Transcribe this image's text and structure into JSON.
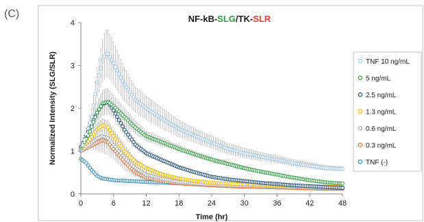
{
  "panel_label": "(C)",
  "chart_data": {
    "type": "scatter",
    "title_parts": [
      {
        "text": "NF-kB-",
        "color": "#1a1a1a"
      },
      {
        "text": "SLG",
        "color": "#2e9e3e"
      },
      {
        "text": "/TK-",
        "color": "#1a1a1a"
      },
      {
        "text": "SLR",
        "color": "#e03c31"
      }
    ],
    "xlabel": "Time (hr)",
    "ylabel": "Normalized Intensity (SLG/SLR)",
    "xlim": [
      0,
      48
    ],
    "ylim": [
      0,
      4
    ],
    "xticks": [
      0,
      6,
      12,
      18,
      24,
      30,
      36,
      42,
      48
    ],
    "yticks": [
      0,
      1,
      2,
      3,
      4
    ],
    "grid": false,
    "legend_position": "right",
    "marker": "open-circle",
    "error_bars": true,
    "series": [
      {
        "name": "TNF 10 ng/mL",
        "color": "#9dc3e6",
        "errcolor": "#b4b4b4",
        "points": [
          [
            0,
            1.0
          ],
          [
            2,
            1.8
          ],
          [
            3,
            2.6
          ],
          [
            4,
            3.1
          ],
          [
            4.5,
            3.27
          ],
          [
            5,
            3.27
          ],
          [
            6,
            3.05
          ],
          [
            8,
            2.55
          ],
          [
            10,
            2.2
          ],
          [
            12,
            2.0
          ],
          [
            15,
            1.75
          ],
          [
            18,
            1.52
          ],
          [
            21,
            1.35
          ],
          [
            24,
            1.2
          ],
          [
            27,
            1.05
          ],
          [
            30,
            0.95
          ],
          [
            33,
            0.87
          ],
          [
            36,
            0.8
          ],
          [
            39,
            0.72
          ],
          [
            42,
            0.66
          ],
          [
            45,
            0.6
          ],
          [
            48,
            0.58
          ]
        ],
        "err": [
          [
            0,
            0.05
          ],
          [
            2,
            0.2
          ],
          [
            3,
            0.35
          ],
          [
            4,
            0.5
          ],
          [
            4.5,
            0.55
          ],
          [
            5,
            0.55
          ],
          [
            6,
            0.5
          ],
          [
            8,
            0.4
          ],
          [
            10,
            0.3
          ],
          [
            12,
            0.28
          ],
          [
            15,
            0.25
          ],
          [
            18,
            0.2
          ],
          [
            21,
            0.17
          ],
          [
            24,
            0.15
          ],
          [
            27,
            0.13
          ],
          [
            30,
            0.12
          ],
          [
            33,
            0.1
          ],
          [
            36,
            0.09
          ],
          [
            39,
            0.08
          ],
          [
            42,
            0.07
          ],
          [
            45,
            0.06
          ],
          [
            48,
            0.05
          ]
        ]
      },
      {
        "name": "5 ng/mL",
        "color": "#2e9e3e",
        "errcolor": "#b4b4b4",
        "points": [
          [
            0,
            1.05
          ],
          [
            1.5,
            1.4
          ],
          [
            3,
            1.9
          ],
          [
            4,
            2.12
          ],
          [
            5,
            2.15
          ],
          [
            6,
            2.05
          ],
          [
            8,
            1.8
          ],
          [
            10,
            1.55
          ],
          [
            12,
            1.35
          ],
          [
            15,
            1.2
          ],
          [
            18,
            1.05
          ],
          [
            21,
            0.92
          ],
          [
            24,
            0.8
          ],
          [
            27,
            0.7
          ],
          [
            30,
            0.6
          ],
          [
            33,
            0.52
          ],
          [
            36,
            0.45
          ],
          [
            39,
            0.38
          ],
          [
            42,
            0.32
          ],
          [
            45,
            0.27
          ],
          [
            48,
            0.24
          ]
        ],
        "err": [
          [
            0,
            0.05
          ],
          [
            1.5,
            0.1
          ],
          [
            3,
            0.25
          ],
          [
            4,
            0.3
          ],
          [
            5,
            0.3
          ],
          [
            6,
            0.25
          ],
          [
            8,
            0.2
          ],
          [
            10,
            0.15
          ],
          [
            12,
            0.12
          ],
          [
            15,
            0.1
          ],
          [
            18,
            0.08
          ],
          [
            21,
            0.07
          ],
          [
            24,
            0.06
          ],
          [
            27,
            0.05
          ],
          [
            30,
            0.05
          ],
          [
            33,
            0.04
          ],
          [
            36,
            0.04
          ],
          [
            39,
            0.03
          ],
          [
            42,
            0.03
          ],
          [
            45,
            0.03
          ],
          [
            48,
            0.02
          ]
        ]
      },
      {
        "name": "2.5 ng/mL",
        "color": "#1f4e79",
        "errcolor": "#b4b4b4",
        "points": [
          [
            0,
            1.1
          ],
          [
            1.5,
            1.5
          ],
          [
            3,
            1.9
          ],
          [
            4,
            2.1
          ],
          [
            5,
            2.15
          ],
          [
            6,
            1.95
          ],
          [
            8,
            1.5
          ],
          [
            10,
            1.15
          ],
          [
            12,
            0.95
          ],
          [
            15,
            0.78
          ],
          [
            18,
            0.62
          ],
          [
            21,
            0.5
          ],
          [
            24,
            0.4
          ],
          [
            27,
            0.34
          ],
          [
            30,
            0.3
          ],
          [
            33,
            0.26
          ],
          [
            36,
            0.23
          ],
          [
            39,
            0.2
          ],
          [
            42,
            0.18
          ],
          [
            45,
            0.16
          ],
          [
            48,
            0.14
          ]
        ],
        "err": [
          [
            0,
            0.05
          ],
          [
            1.5,
            0.1
          ],
          [
            3,
            0.2
          ],
          [
            4,
            0.25
          ],
          [
            5,
            0.25
          ],
          [
            6,
            0.2
          ],
          [
            8,
            0.15
          ],
          [
            10,
            0.1
          ],
          [
            12,
            0.08
          ],
          [
            15,
            0.06
          ],
          [
            18,
            0.05
          ],
          [
            21,
            0.04
          ],
          [
            24,
            0.04
          ],
          [
            27,
            0.03
          ],
          [
            30,
            0.03
          ],
          [
            33,
            0.03
          ],
          [
            36,
            0.02
          ],
          [
            39,
            0.02
          ],
          [
            42,
            0.02
          ],
          [
            45,
            0.02
          ],
          [
            48,
            0.02
          ]
        ]
      },
      {
        "name": "1.3 ng/mL",
        "color": "#f2b705",
        "errcolor": "#b4b4b4",
        "points": [
          [
            0,
            1.05
          ],
          [
            1.5,
            1.25
          ],
          [
            3,
            1.5
          ],
          [
            4,
            1.6
          ],
          [
            5,
            1.55
          ],
          [
            6,
            1.35
          ],
          [
            8,
            1.0
          ],
          [
            10,
            0.75
          ],
          [
            12,
            0.6
          ],
          [
            15,
            0.45
          ],
          [
            18,
            0.36
          ],
          [
            21,
            0.3
          ],
          [
            24,
            0.26
          ],
          [
            27,
            0.24
          ],
          [
            30,
            0.22
          ],
          [
            33,
            0.21
          ],
          [
            36,
            0.2
          ],
          [
            39,
            0.19
          ],
          [
            42,
            0.18
          ],
          [
            45,
            0.17
          ],
          [
            48,
            0.16
          ]
        ],
        "err": [
          [
            0,
            0.05
          ],
          [
            1.5,
            0.08
          ],
          [
            3,
            0.12
          ],
          [
            4,
            0.15
          ],
          [
            5,
            0.15
          ],
          [
            6,
            0.12
          ],
          [
            8,
            0.1
          ],
          [
            10,
            0.07
          ],
          [
            12,
            0.05
          ],
          [
            15,
            0.04
          ],
          [
            18,
            0.03
          ],
          [
            21,
            0.03
          ],
          [
            24,
            0.02
          ],
          [
            27,
            0.02
          ],
          [
            30,
            0.02
          ],
          [
            33,
            0.02
          ],
          [
            36,
            0.02
          ],
          [
            39,
            0.02
          ],
          [
            42,
            0.02
          ],
          [
            45,
            0.02
          ],
          [
            48,
            0.02
          ]
        ]
      },
      {
        "name": "0.6 ng/mL",
        "color": "#a6a6a6",
        "errcolor": "#b4b4b4",
        "points": [
          [
            0,
            1.0
          ],
          [
            1.5,
            1.15
          ],
          [
            3,
            1.3
          ],
          [
            4,
            1.35
          ],
          [
            5,
            1.3
          ],
          [
            6,
            1.15
          ],
          [
            8,
            0.85
          ],
          [
            10,
            0.6
          ],
          [
            12,
            0.45
          ],
          [
            15,
            0.35
          ],
          [
            18,
            0.28
          ],
          [
            21,
            0.24
          ],
          [
            24,
            0.22
          ],
          [
            27,
            0.2
          ],
          [
            30,
            0.19
          ],
          [
            33,
            0.18
          ],
          [
            36,
            0.17
          ],
          [
            39,
            0.16
          ],
          [
            42,
            0.15
          ],
          [
            45,
            0.14
          ],
          [
            48,
            0.13
          ]
        ],
        "err": [
          [
            0,
            0.05
          ],
          [
            1.5,
            0.1
          ],
          [
            3,
            0.3
          ],
          [
            4,
            0.4
          ],
          [
            5,
            0.4
          ],
          [
            6,
            0.35
          ],
          [
            8,
            0.3
          ],
          [
            10,
            0.2
          ],
          [
            12,
            0.15
          ],
          [
            15,
            0.1
          ],
          [
            18,
            0.08
          ],
          [
            21,
            0.06
          ],
          [
            24,
            0.05
          ],
          [
            27,
            0.04
          ],
          [
            30,
            0.04
          ],
          [
            33,
            0.03
          ],
          [
            36,
            0.03
          ],
          [
            39,
            0.03
          ],
          [
            42,
            0.03
          ],
          [
            45,
            0.03
          ],
          [
            48,
            0.03
          ]
        ]
      },
      {
        "name": "0.3 ng/mL",
        "color": "#e0703a",
        "errcolor": "#b4b4b4",
        "points": [
          [
            0,
            1.0
          ],
          [
            1.5,
            1.1
          ],
          [
            3,
            1.2
          ],
          [
            4,
            1.25
          ],
          [
            5,
            1.2
          ],
          [
            6,
            1.05
          ],
          [
            8,
            0.75
          ],
          [
            10,
            0.5
          ],
          [
            12,
            0.38
          ],
          [
            15,
            0.3
          ],
          [
            18,
            0.25
          ],
          [
            21,
            0.22
          ],
          [
            24,
            0.2
          ],
          [
            27,
            0.18
          ],
          [
            30,
            0.17
          ],
          [
            33,
            0.16
          ],
          [
            36,
            0.15
          ],
          [
            39,
            0.14
          ],
          [
            42,
            0.13
          ],
          [
            45,
            0.12
          ],
          [
            48,
            0.12
          ]
        ],
        "err": [
          [
            0,
            0.05
          ],
          [
            1.5,
            0.06
          ],
          [
            3,
            0.1
          ],
          [
            4,
            0.12
          ],
          [
            5,
            0.12
          ],
          [
            6,
            0.1
          ],
          [
            8,
            0.08
          ],
          [
            10,
            0.05
          ],
          [
            12,
            0.04
          ],
          [
            15,
            0.03
          ],
          [
            18,
            0.03
          ],
          [
            21,
            0.02
          ],
          [
            24,
            0.02
          ],
          [
            27,
            0.02
          ],
          [
            30,
            0.02
          ],
          [
            33,
            0.02
          ],
          [
            36,
            0.02
          ],
          [
            39,
            0.02
          ],
          [
            42,
            0.02
          ],
          [
            45,
            0.02
          ],
          [
            48,
            0.02
          ]
        ]
      },
      {
        "name": "TNF (-)",
        "color": "#2e8bc0",
        "errcolor": "#b4b4b4",
        "points": [
          [
            0,
            0.82
          ],
          [
            1,
            0.72
          ],
          [
            2,
            0.55
          ],
          [
            3,
            0.42
          ],
          [
            4,
            0.36
          ],
          [
            6,
            0.32
          ],
          [
            9,
            0.3
          ],
          [
            12,
            0.28
          ],
          [
            18,
            0.25
          ],
          [
            24,
            0.22
          ],
          [
            30,
            0.2
          ],
          [
            36,
            0.18
          ],
          [
            42,
            0.16
          ],
          [
            48,
            0.15
          ]
        ],
        "err": [
          [
            0,
            0.02
          ],
          [
            1,
            0.02
          ],
          [
            2,
            0.02
          ],
          [
            3,
            0.02
          ],
          [
            4,
            0.02
          ],
          [
            6,
            0.02
          ],
          [
            9,
            0.02
          ],
          [
            12,
            0.02
          ],
          [
            18,
            0.02
          ],
          [
            24,
            0.02
          ],
          [
            30,
            0.02
          ],
          [
            36,
            0.02
          ],
          [
            42,
            0.02
          ],
          [
            48,
            0.02
          ]
        ]
      }
    ]
  }
}
